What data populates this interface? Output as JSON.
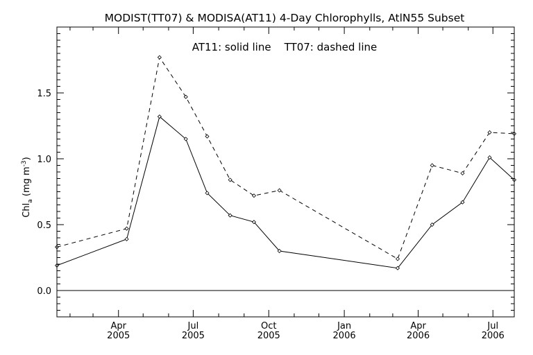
{
  "chart_data": {
    "type": "line",
    "title": "MODIST(TT07) & MODISA(AT11) 4-Day Chlorophylls, AtlN55 Subset",
    "annotation": "AT11: solid line    TT07: dashed line",
    "ylabel": "Chl",
    "ylabel_sub": "a",
    "ylabel_unit_open": " (mg m",
    "ylabel_unit_sup": "-3",
    "ylabel_unit_close": ")",
    "ylim": [
      -0.2,
      2.0
    ],
    "xlim": [
      "2005-01-16",
      "2006-07-27"
    ],
    "grid": false,
    "legend": "none",
    "y_ticks": [
      "0.0",
      "0.5",
      "1.0",
      "1.5"
    ],
    "x_ticks": [
      {
        "date": "2005-04-01",
        "month": "Apr",
        "year": "2005"
      },
      {
        "date": "2005-07-01",
        "month": "Jul",
        "year": "2005"
      },
      {
        "date": "2005-10-01",
        "month": "Oct",
        "year": "2005"
      },
      {
        "date": "2006-01-01",
        "month": "Jan",
        "year": "2006"
      },
      {
        "date": "2006-04-01",
        "month": "Apr",
        "year": "2006"
      },
      {
        "date": "2006-07-01",
        "month": "Jul",
        "year": "2006"
      }
    ],
    "reference_line": 0.0,
    "series": [
      {
        "name": "AT11",
        "style": "solid",
        "color": "#000000",
        "points": [
          {
            "x": "2005-01-16",
            "y": 0.19
          },
          {
            "x": "2005-04-11",
            "y": 0.39
          },
          {
            "x": "2005-05-21",
            "y": 1.32
          },
          {
            "x": "2005-06-22",
            "y": 1.15
          },
          {
            "x": "2005-07-18",
            "y": 0.74
          },
          {
            "x": "2005-08-15",
            "y": 0.57
          },
          {
            "x": "2005-09-13",
            "y": 0.52
          },
          {
            "x": "2005-10-14",
            "y": 0.3
          },
          {
            "x": "2006-03-07",
            "y": 0.17
          },
          {
            "x": "2006-04-18",
            "y": 0.5
          },
          {
            "x": "2006-05-25",
            "y": 0.67
          },
          {
            "x": "2006-06-27",
            "y": 1.01
          },
          {
            "x": "2006-07-27",
            "y": 0.84
          }
        ]
      },
      {
        "name": "TT07",
        "style": "dashed",
        "color": "#000000",
        "points": [
          {
            "x": "2005-01-16",
            "y": 0.33
          },
          {
            "x": "2005-04-11",
            "y": 0.47
          },
          {
            "x": "2005-05-21",
            "y": 1.77
          },
          {
            "x": "2005-06-22",
            "y": 1.47
          },
          {
            "x": "2005-07-18",
            "y": 1.17
          },
          {
            "x": "2005-08-15",
            "y": 0.84
          },
          {
            "x": "2005-09-13",
            "y": 0.72
          },
          {
            "x": "2005-10-14",
            "y": 0.76
          },
          {
            "x": "2006-03-07",
            "y": 0.24
          },
          {
            "x": "2006-04-18",
            "y": 0.95
          },
          {
            "x": "2006-05-25",
            "y": 0.89
          },
          {
            "x": "2006-06-27",
            "y": 1.2
          },
          {
            "x": "2006-07-27",
            "y": 1.19
          }
        ]
      }
    ]
  }
}
